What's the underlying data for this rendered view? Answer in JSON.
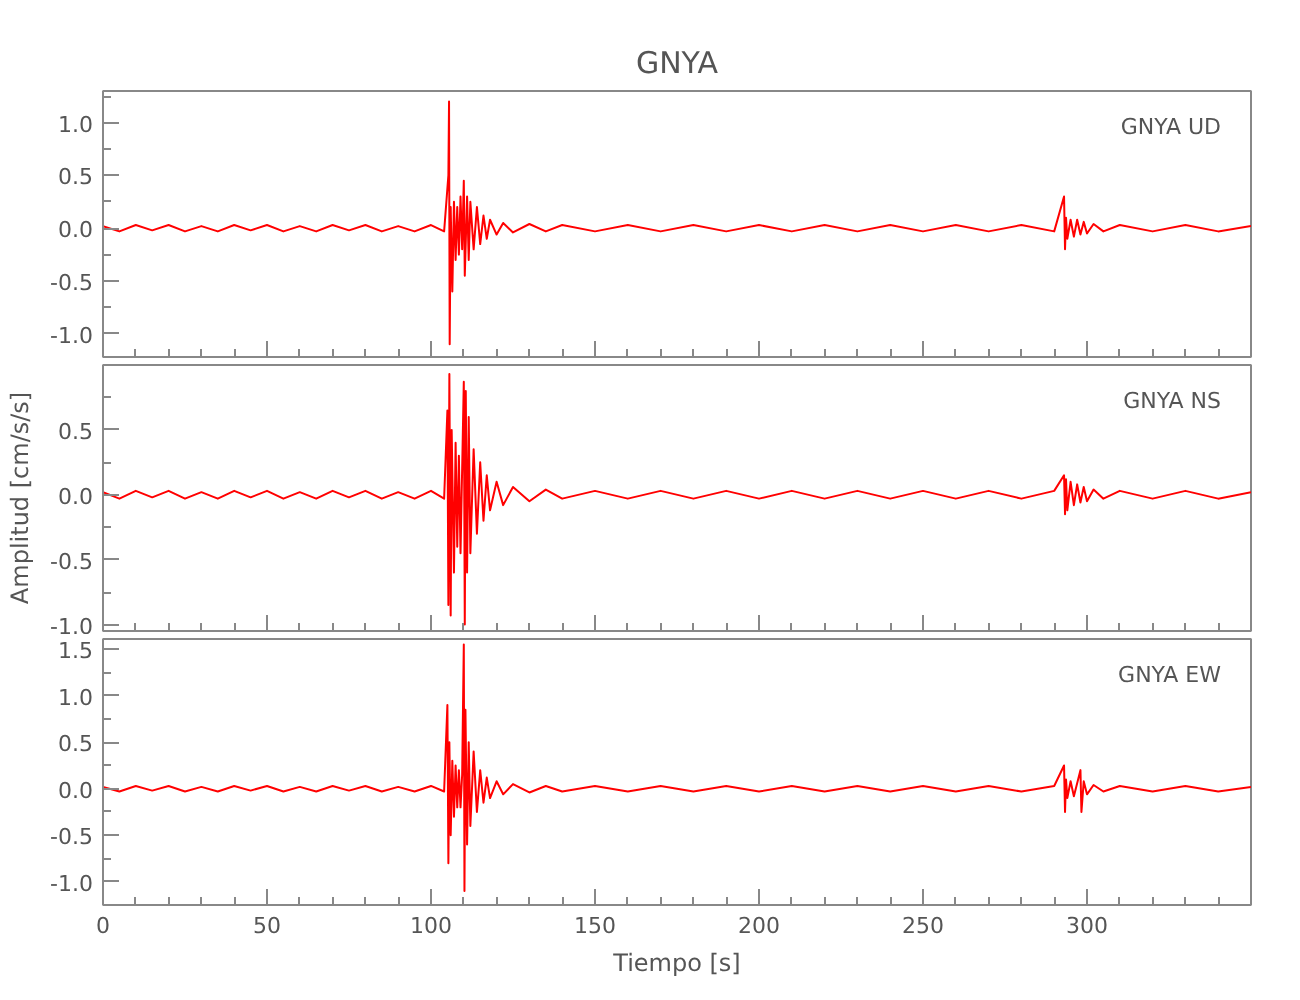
{
  "chart_data": [
    {
      "type": "line",
      "title": "GNYA",
      "grid": false,
      "tick_labels": "y",
      "legend": false,
      "x": [
        0,
        5,
        10,
        15,
        20,
        25,
        30,
        35,
        40,
        45,
        50,
        55,
        60,
        65,
        70,
        75,
        80,
        85,
        90,
        95,
        100,
        104,
        105.3,
        105.5,
        105.7,
        106,
        106.5,
        107,
        107.5,
        108,
        108.5,
        109,
        109.5,
        110,
        110.3,
        111,
        111.5,
        112,
        113,
        114,
        115,
        116,
        117,
        118,
        120,
        122,
        125,
        130,
        135,
        140,
        150,
        160,
        170,
        180,
        190,
        200,
        210,
        220,
        230,
        240,
        250,
        260,
        270,
        280,
        290,
        293,
        293.3,
        293.6,
        294,
        295,
        296,
        297,
        298,
        299,
        300,
        302,
        305,
        310,
        320,
        330,
        340,
        350
      ],
      "series": [
        {
          "name": "GNYA   UD",
          "color": "#ff0000",
          "values": [
            0.02,
            -0.03,
            0.03,
            -0.02,
            0.03,
            -0.03,
            0.02,
            -0.03,
            0.03,
            -0.02,
            0.03,
            -0.03,
            0.02,
            -0.03,
            0.03,
            -0.02,
            0.03,
            -0.03,
            0.02,
            -0.03,
            0.03,
            -0.03,
            0.5,
            1.2,
            -1.1,
            0.2,
            -0.6,
            0.25,
            -0.3,
            0.2,
            -0.25,
            0.3,
            -0.2,
            0.45,
            -0.45,
            0.3,
            -0.3,
            0.25,
            -0.2,
            0.2,
            -0.15,
            0.12,
            -0.1,
            0.08,
            -0.06,
            0.05,
            -0.04,
            0.04,
            -0.03,
            0.03,
            -0.03,
            0.03,
            -0.03,
            0.03,
            -0.03,
            0.03,
            -0.03,
            0.03,
            -0.03,
            0.03,
            -0.03,
            0.03,
            -0.03,
            0.03,
            -0.03,
            0.3,
            -0.2,
            0.1,
            -0.1,
            0.08,
            -0.08,
            0.08,
            -0.06,
            0.06,
            -0.05,
            0.04,
            -0.03,
            0.03,
            -0.03,
            0.03,
            -0.03,
            0.02
          ]
        }
      ],
      "xlim": [
        0,
        350
      ],
      "ylim": [
        -1.22,
        1.3
      ],
      "yticks": [
        {
          "value": -1,
          "label": "-1.0"
        },
        {
          "value": -0.5,
          "label": "-0.5"
        },
        {
          "value": 0,
          "label": "0.0"
        },
        {
          "value": 0.5,
          "label": "0.5"
        },
        {
          "value": 1,
          "label": "1.0"
        }
      ]
    },
    {
      "type": "line",
      "ylabel": "Amplitud [cm/s/s]",
      "grid": false,
      "tick_labels": "y",
      "legend": false,
      "x": [
        0,
        5,
        10,
        15,
        20,
        25,
        30,
        35,
        40,
        45,
        50,
        55,
        60,
        65,
        70,
        75,
        80,
        85,
        90,
        95,
        100,
        104,
        105,
        105.3,
        105.6,
        106,
        106.3,
        107,
        107.5,
        108,
        108.5,
        109,
        109.5,
        110,
        110.3,
        110.6,
        111,
        111.5,
        112,
        113,
        114,
        115,
        116,
        117,
        118,
        120,
        122,
        125,
        130,
        135,
        140,
        150,
        160,
        170,
        180,
        190,
        200,
        210,
        220,
        230,
        240,
        250,
        260,
        270,
        280,
        290,
        293,
        293.3,
        293.6,
        294,
        295,
        296,
        297,
        298,
        299,
        300,
        302,
        305,
        310,
        320,
        330,
        340,
        350
      ],
      "series": [
        {
          "name": "GNYA   NS",
          "color": "#ff0000",
          "values": [
            0.02,
            -0.03,
            0.03,
            -0.02,
            0.03,
            -0.03,
            0.02,
            -0.03,
            0.03,
            -0.02,
            0.03,
            -0.03,
            0.02,
            -0.03,
            0.03,
            -0.02,
            0.03,
            -0.03,
            0.02,
            -0.03,
            0.03,
            -0.03,
            0.65,
            -0.85,
            0.93,
            -0.93,
            0.5,
            -0.6,
            0.4,
            -0.4,
            0.3,
            -0.45,
            0.2,
            0.87,
            -1.0,
            0.8,
            -0.6,
            0.6,
            -0.45,
            0.35,
            -0.3,
            0.25,
            -0.2,
            0.15,
            -0.12,
            0.1,
            -0.08,
            0.06,
            -0.05,
            0.04,
            -0.03,
            0.03,
            -0.03,
            0.03,
            -0.03,
            0.03,
            -0.03,
            0.03,
            -0.03,
            0.03,
            -0.03,
            0.03,
            -0.03,
            0.03,
            -0.03,
            0.03,
            0.15,
            -0.15,
            0.12,
            -0.12,
            0.1,
            -0.08,
            0.08,
            -0.06,
            0.06,
            -0.05,
            0.04,
            -0.03,
            0.03,
            -0.03,
            0.03,
            -0.03,
            0.02
          ]
        }
      ],
      "xlim": [
        0,
        350
      ],
      "ylim": [
        -1.05,
        1.0
      ],
      "yticks": [
        {
          "value": -1,
          "label": "-1.0"
        },
        {
          "value": -0.5,
          "label": "-0.5"
        },
        {
          "value": 0,
          "label": "0.0"
        },
        {
          "value": 0.5,
          "label": "0.5"
        }
      ]
    },
    {
      "type": "line",
      "xlabel": "Tiempo [s]",
      "grid": false,
      "legend": false,
      "x": [
        0,
        5,
        10,
        15,
        20,
        25,
        30,
        35,
        40,
        45,
        50,
        55,
        60,
        65,
        70,
        75,
        80,
        85,
        90,
        95,
        100,
        104,
        105,
        105.3,
        105.6,
        106,
        106.5,
        107,
        107.5,
        108,
        108.5,
        109,
        109.5,
        110,
        110.2,
        110.5,
        111,
        111.5,
        112,
        113,
        114,
        115,
        116,
        117,
        118,
        120,
        122,
        125,
        130,
        135,
        140,
        150,
        160,
        170,
        180,
        190,
        200,
        210,
        220,
        230,
        240,
        250,
        260,
        270,
        280,
        290,
        293,
        293.3,
        293.6,
        294,
        295,
        296,
        297,
        298,
        298.3,
        299,
        300,
        302,
        305,
        310,
        320,
        330,
        340,
        350
      ],
      "series": [
        {
          "name": "GNYA   EW",
          "color": "#ff0000",
          "values": [
            0.02,
            -0.03,
            0.03,
            -0.02,
            0.03,
            -0.03,
            0.02,
            -0.03,
            0.03,
            -0.02,
            0.03,
            -0.03,
            0.02,
            -0.03,
            0.03,
            -0.02,
            0.03,
            -0.03,
            0.02,
            -0.03,
            0.03,
            -0.03,
            0.9,
            -0.8,
            0.5,
            -0.5,
            0.3,
            -0.3,
            0.25,
            -0.2,
            0.2,
            -0.2,
            0.15,
            1.55,
            -1.1,
            0.85,
            -0.6,
            0.5,
            -0.4,
            0.4,
            -0.25,
            0.2,
            -0.15,
            0.12,
            -0.1,
            0.08,
            -0.06,
            0.05,
            -0.04,
            0.03,
            -0.03,
            0.03,
            -0.03,
            0.03,
            -0.03,
            0.03,
            -0.03,
            0.03,
            -0.03,
            0.03,
            -0.03,
            0.03,
            -0.03,
            0.03,
            -0.03,
            0.03,
            0.25,
            -0.25,
            0.1,
            -0.1,
            0.08,
            -0.08,
            0.06,
            0.2,
            -0.25,
            0.08,
            -0.06,
            0.04,
            -0.03,
            0.03,
            -0.03,
            0.03,
            -0.03,
            0.02
          ]
        }
      ],
      "xlim": [
        0,
        350
      ],
      "ylim": [
        -1.25,
        1.61
      ],
      "xticks": [
        0,
        50,
        100,
        150,
        200,
        250,
        300
      ],
      "yticks": [
        {
          "value": -1,
          "label": "-1.0"
        },
        {
          "value": -0.5,
          "label": "-0.5"
        },
        {
          "value": 0,
          "label": "0.0"
        },
        {
          "value": 0.5,
          "label": "0.5"
        },
        {
          "value": 1,
          "label": "1.0"
        },
        {
          "value": 1.5,
          "label": "1.5"
        }
      ]
    }
  ]
}
